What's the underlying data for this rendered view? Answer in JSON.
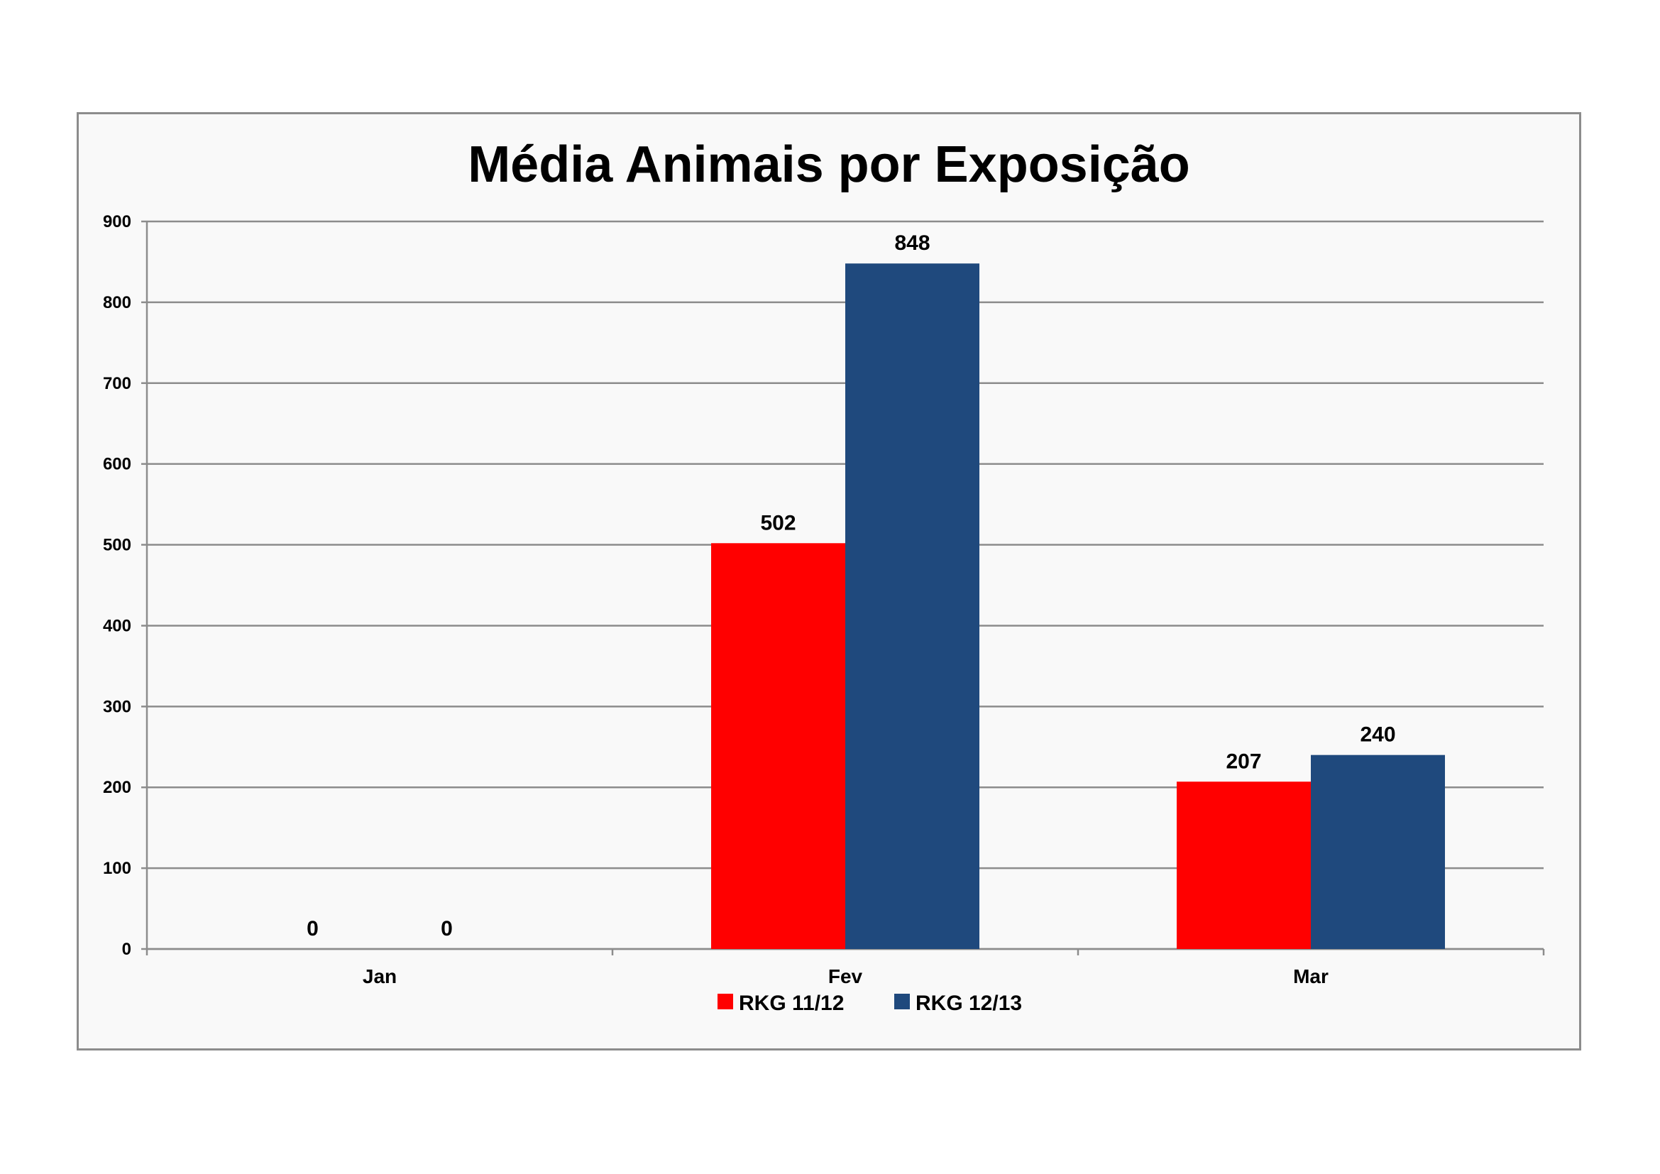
{
  "chart_data": {
    "type": "bar",
    "title": "Média Animais por Exposição",
    "xlabel": "",
    "ylabel": "",
    "categories": [
      "Jan",
      "Fev",
      "Mar"
    ],
    "series": [
      {
        "name": "RKG 11/12",
        "color": "#ff0000",
        "values": [
          0,
          502,
          207
        ]
      },
      {
        "name": "RKG 12/13",
        "color": "#1f497d",
        "values": [
          0,
          848,
          240
        ]
      }
    ],
    "ylim": [
      0,
      900
    ],
    "yticks": [
      0,
      100,
      200,
      300,
      400,
      500,
      600,
      700,
      800,
      900
    ],
    "grid": true,
    "data_labels": true,
    "legend_position": "bottom"
  }
}
